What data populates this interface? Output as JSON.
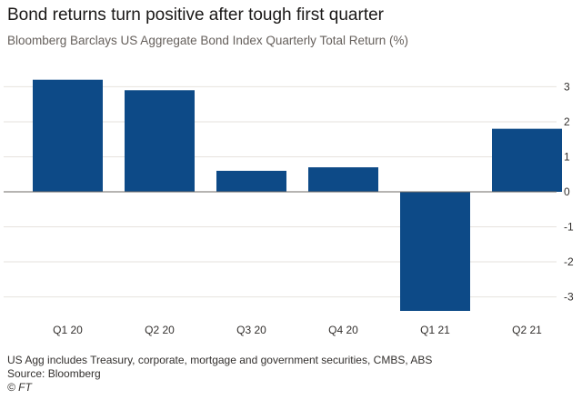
{
  "header": {
    "title": "Bond returns turn positive after tough first quarter",
    "subtitle": "Bloomberg Barclays US Aggregate Bond Index Quarterly Total Return (%)"
  },
  "footer": {
    "note": "US Agg includes Treasury, corporate, mortgage and government securities, CMBS, ABS",
    "source": "Source: Bloomberg",
    "credit": "© FT"
  },
  "colors": {
    "bar": "#0d4a87",
    "grid": "#e6e2dd",
    "zero_line": "#6e6a66",
    "text": "#33302e"
  },
  "chart_data": {
    "type": "bar",
    "categories": [
      "Q1 20",
      "Q2 20",
      "Q3 20",
      "Q4 20",
      "Q1 21",
      "Q2 21"
    ],
    "values": [
      3.2,
      2.9,
      0.6,
      0.7,
      -3.4,
      1.8
    ],
    "title": "Bond returns turn positive after tough first quarter",
    "subtitle": "Bloomberg Barclays US Aggregate Bond Index Quarterly Total Return (%)",
    "xlabel": "",
    "ylabel": "",
    "ylim": [
      -3.4,
      3.4
    ],
    "yticks": [
      "3",
      "2",
      "1",
      "0",
      "-1",
      "-2",
      "-3"
    ],
    "ytick_values": [
      3,
      2,
      1,
      0,
      -1,
      -2,
      -3
    ],
    "y_axis_side": "right",
    "grid": true,
    "legend": "none"
  }
}
